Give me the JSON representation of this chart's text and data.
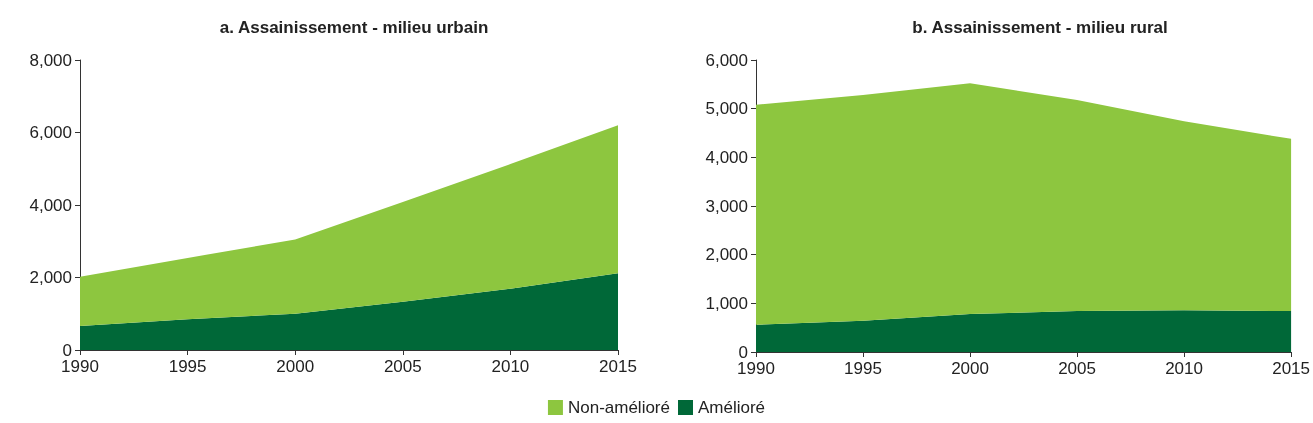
{
  "chart_data": [
    {
      "type": "area",
      "title": "a. Assainissement - milieu urbain",
      "x": [
        1990,
        1995,
        2000,
        2005,
        2010,
        2015
      ],
      "stacked": true,
      "xlim": [
        1990,
        2015
      ],
      "xticks": [
        1990,
        1995,
        2000,
        2005,
        2010,
        2015
      ],
      "ylim": [
        0,
        8000
      ],
      "yticks": [
        {
          "value": 0,
          "label": "0"
        },
        {
          "value": 2000,
          "label": "2,000"
        },
        {
          "value": 4000,
          "label": "4,000"
        },
        {
          "value": 6000,
          "label": "6,000"
        },
        {
          "value": 8000,
          "label": "8,000"
        }
      ],
      "grid": false,
      "legend": "bottom",
      "series": [
        {
          "name": "Amélioré",
          "color": "#006838",
          "values": [
            660,
            850,
            1000,
            1330,
            1690,
            2120
          ]
        },
        {
          "name": "Non-amélioré",
          "color": "#8dc63f",
          "values": [
            1360,
            1690,
            2050,
            2750,
            3440,
            4080
          ]
        }
      ]
    },
    {
      "type": "area",
      "title": "b. Assainissement - milieu rural",
      "x": [
        1990,
        1995,
        2000,
        2005,
        2010,
        2015
      ],
      "stacked": true,
      "xlim": [
        1990,
        2015
      ],
      "xticks": [
        1990,
        1995,
        2000,
        2005,
        2010,
        2015
      ],
      "ylim": [
        0,
        6000
      ],
      "yticks": [
        {
          "value": 0,
          "label": "0"
        },
        {
          "value": 1000,
          "label": "1,000"
        },
        {
          "value": 2000,
          "label": "2,000"
        },
        {
          "value": 3000,
          "label": "3,000"
        },
        {
          "value": 4000,
          "label": "4,000"
        },
        {
          "value": 5000,
          "label": "5,000"
        },
        {
          "value": 6000,
          "label": "6,000"
        }
      ],
      "grid": false,
      "legend": false,
      "series": [
        {
          "color": "#006838",
          "values": [
            560,
            640,
            780,
            840,
            860,
            840
          ]
        },
        {
          "color": "#8dc63f",
          "values": [
            4520,
            4640,
            4740,
            4340,
            3880,
            3540
          ]
        }
      ]
    }
  ]
}
